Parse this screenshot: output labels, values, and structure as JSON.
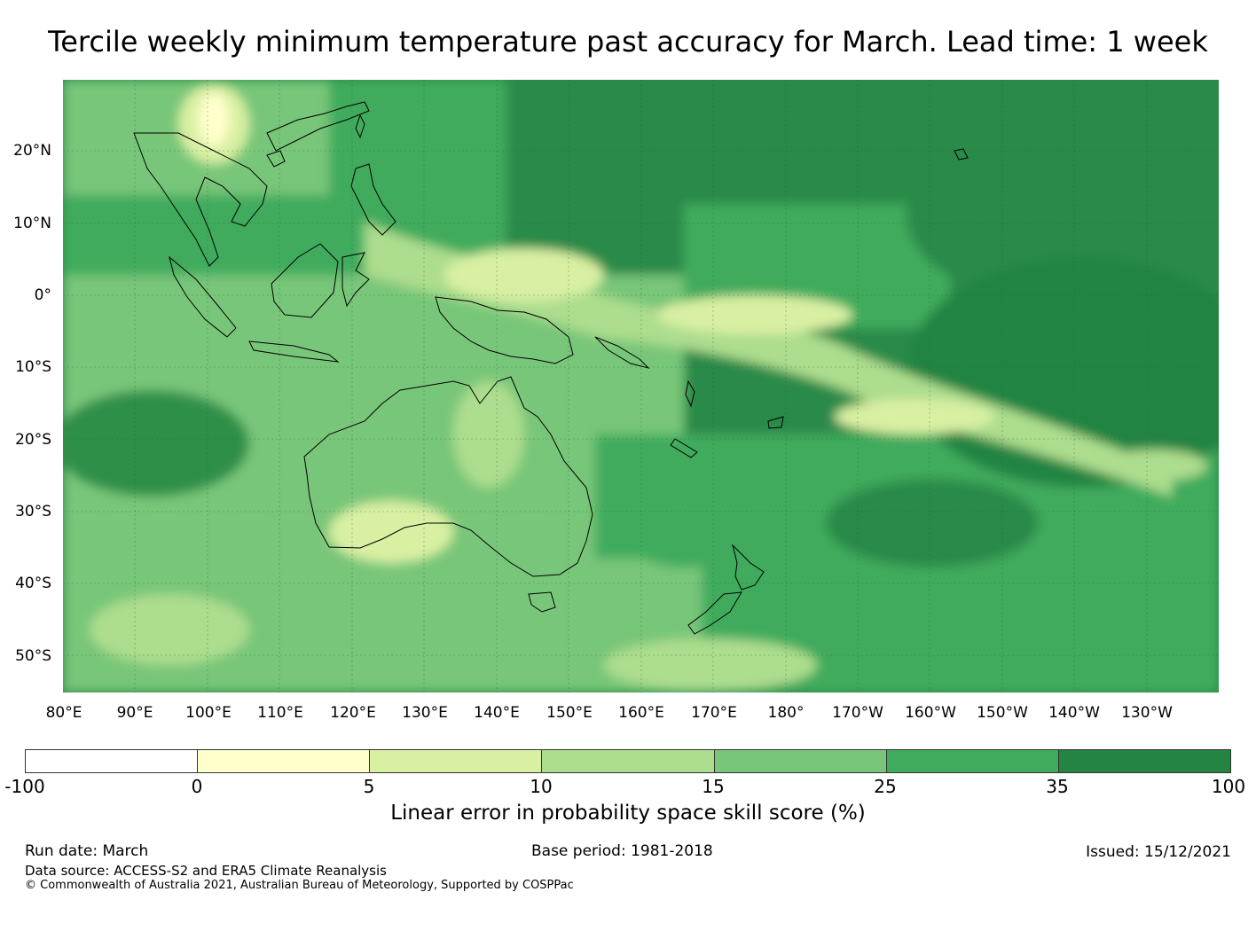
{
  "title": "Tercile weekly minimum temperature past accuracy for March. Lead time: 1 week",
  "map": {
    "lat_labels": [
      "20°N",
      "10°N",
      "0°",
      "10°S",
      "20°S",
      "30°S",
      "40°S",
      "50°S"
    ],
    "lon_labels": [
      "80°E",
      "90°E",
      "100°E",
      "110°E",
      "120°E",
      "130°E",
      "140°E",
      "150°E",
      "160°E",
      "170°E",
      "180°",
      "170°W",
      "160°W",
      "150°W",
      "140°W",
      "130°W"
    ]
  },
  "colorbar": {
    "ticks": [
      "-100",
      "0",
      "5",
      "10",
      "15",
      "25",
      "35",
      "100"
    ],
    "colors": [
      "#ffffff",
      "#ffffcc",
      "#d9f0a3",
      "#addd8e",
      "#78c679",
      "#41ab5d",
      "#238443"
    ],
    "label": "Linear error in probability space skill score (%)"
  },
  "footer": {
    "run_date": "Run date: March",
    "base_period": "Base period: 1981-2018",
    "issued": "Issued: 15/12/2021",
    "data_source": "Data source: ACCESS-S2 and ERA5 Climate Reanalysis",
    "copyright": "© Commonwealth of Australia 2021, Australian Bureau of Meteorology, Supported by COSPPac"
  }
}
